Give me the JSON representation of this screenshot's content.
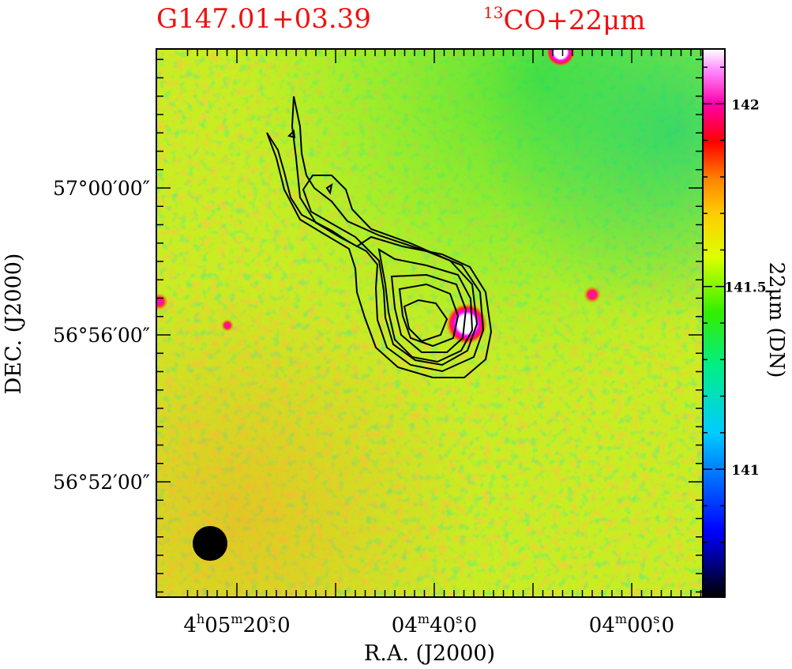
{
  "figure": {
    "source_name": "G147.01+03.39",
    "overlay_label_sup": "13",
    "overlay_label_main": "CO+22",
    "overlay_label_mu": "μ",
    "overlay_label_tail": "m",
    "title_color": "#ee1111"
  },
  "chart_data": {
    "type": "heatmap",
    "description_of_content": "22um intensity image with 13CO contour overlay",
    "xlabel": "R.A. (J2000)",
    "ylabel": "DEC. (J2000)",
    "colorbar_label": "22μm (DN)",
    "x_ticks": [
      {
        "hours": "4",
        "minutes": "05",
        "seconds": "20",
        "frac": "0",
        "ra_seconds": 14720
      },
      {
        "hours": "",
        "minutes": "04",
        "seconds": "40",
        "frac": "0",
        "ra_seconds": 14680
      },
      {
        "hours": "",
        "minutes": "04",
        "seconds": "00",
        "frac": "0",
        "ra_seconds": 14640
      }
    ],
    "y_ticks": [
      {
        "label": "57°00′00″",
        "dec_arcmin": 3420
      },
      {
        "label": "56°56′00″",
        "dec_arcmin": 3416
      },
      {
        "label": "56°52′00″",
        "dec_arcmin": 3412
      }
    ],
    "colorbar": {
      "min": 140.65,
      "max": 142.15,
      "ticks": [
        141,
        141.5,
        142
      ],
      "tick_labels": [
        "141",
        "141.5",
        "142"
      ],
      "colormap": [
        "#000000",
        "#0000ff",
        "#00ffff",
        "#00ff00",
        "#ffff00",
        "#ff8800",
        "#ff0000",
        "#ff00ff",
        "#ffffff"
      ]
    },
    "background_level": "yellow-green (~141.45 DN)",
    "contour_levels_count": 7,
    "contour_color": "#000000",
    "beam_color": "#000000",
    "bright_sources": [
      "point source at core peak",
      "point source near top edge",
      "point source to the east-right",
      "point source near left edge"
    ]
  }
}
